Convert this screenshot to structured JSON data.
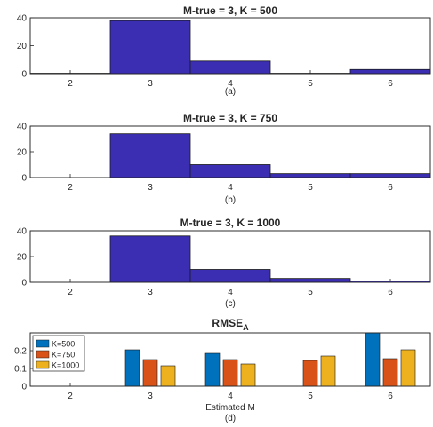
{
  "chart_data": [
    {
      "type": "bar",
      "panel": "(a)",
      "title": "M-true = 3, K = 500",
      "categories": [
        "2",
        "3",
        "4",
        "5",
        "6"
      ],
      "values": [
        0.3,
        38,
        9,
        0.3,
        3
      ],
      "ylim": [
        0,
        40
      ],
      "yticks": [
        "0",
        "20",
        "40"
      ],
      "color": "#3B2EB3",
      "caption": "(a)"
    },
    {
      "type": "bar",
      "panel": "(b)",
      "title": "M-true = 3, K = 750",
      "categories": [
        "2",
        "3",
        "4",
        "5",
        "6"
      ],
      "values": [
        0,
        34,
        10,
        3,
        3
      ],
      "ylim": [
        0,
        40
      ],
      "yticks": [
        "0",
        "20",
        "40"
      ],
      "color": "#3B2EB3",
      "caption": "(b)"
    },
    {
      "type": "bar",
      "panel": "(c)",
      "title": "M-true = 3, K = 1000",
      "categories": [
        "2",
        "3",
        "4",
        "5",
        "6"
      ],
      "values": [
        0,
        36,
        10,
        3,
        1
      ],
      "ylim": [
        0,
        40
      ],
      "yticks": [
        "0",
        "20",
        "40"
      ],
      "color": "#3B2EB3",
      "caption": "(c)"
    },
    {
      "type": "bar",
      "panel": "(d)",
      "title": "RMSE",
      "title_subscript": "A",
      "xlabel": "Estimated M",
      "categories": [
        "2",
        "3",
        "4",
        "5",
        "6"
      ],
      "ylim": [
        0,
        0.3
      ],
      "yticks": [
        "0",
        "0.1",
        "0.2"
      ],
      "series": [
        {
          "name": "K=500",
          "color": "#0072BD",
          "values": [
            null,
            0.205,
            0.185,
            null,
            0.305
          ]
        },
        {
          "name": "K=750",
          "color": "#D95319",
          "values": [
            null,
            0.15,
            0.15,
            0.145,
            0.155
          ]
        },
        {
          "name": "K=1000",
          "color": "#EDB120",
          "values": [
            null,
            0.115,
            0.125,
            0.17,
            0.205
          ]
        }
      ],
      "legend": "top-left",
      "caption": "(d)"
    }
  ]
}
